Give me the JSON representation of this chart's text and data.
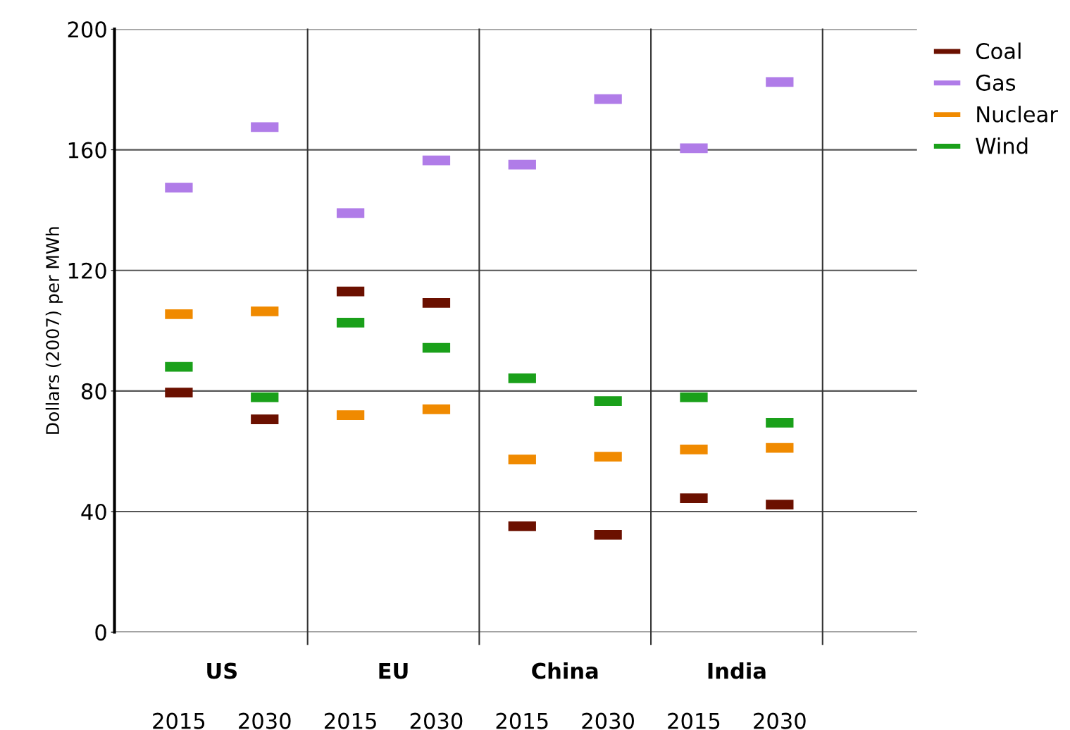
{
  "chart_data": {
    "type": "scatter",
    "ylabel": "Dollars (2007) per MWh",
    "categories": [
      "2015",
      "2030",
      "2015",
      "2030",
      "2015",
      "2030",
      "2015",
      "2030"
    ],
    "annotations": [
      "US",
      "EU",
      "China",
      "India"
    ],
    "series": [
      {
        "name": "Coal",
        "color": "#6b1000",
        "values": [
          79.5,
          70.6,
          113,
          109.2,
          35.1,
          32.3,
          44.4,
          42.3
        ]
      },
      {
        "name": "Gas",
        "color": "#b07ce8",
        "values": [
          147.4,
          167.5,
          139,
          156.5,
          155.1,
          176.8,
          160.5,
          182.5
        ]
      },
      {
        "name": "Nuclear",
        "color": "#f08a00",
        "values": [
          105.5,
          106.4,
          72,
          73.9,
          57.3,
          58.2,
          60.6,
          61.1
        ]
      },
      {
        "name": "Wind",
        "color": "#1aa01a",
        "values": [
          88,
          77.9,
          102.7,
          94.3,
          84.2,
          76.7,
          77.9,
          69.5
        ]
      }
    ],
    "ylim": [
      0,
      200
    ],
    "yticks": [
      0,
      40,
      80,
      120,
      160,
      200
    ],
    "grid": "y",
    "legend": "top right"
  }
}
